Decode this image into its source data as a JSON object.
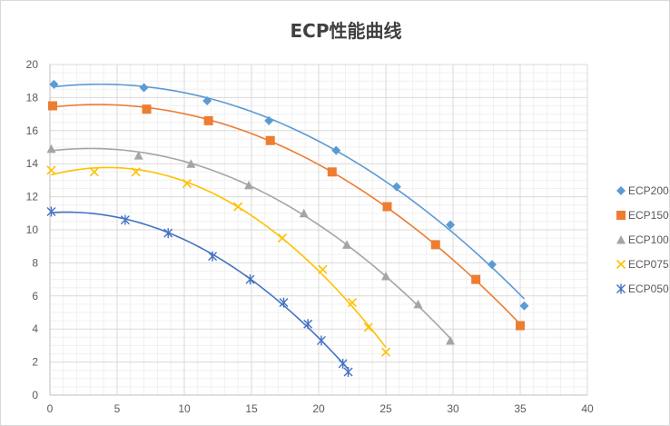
{
  "chart_data": {
    "type": "scatter",
    "title": "ECP性能曲线",
    "xlabel": "",
    "ylabel": "",
    "xlim": [
      0,
      40
    ],
    "ylim": [
      0,
      20
    ],
    "xticks": [
      0,
      5,
      10,
      15,
      20,
      25,
      30,
      35,
      40
    ],
    "yticks": [
      0,
      2,
      4,
      6,
      8,
      10,
      12,
      14,
      16,
      18,
      20
    ],
    "grid": true,
    "legend_position": "right",
    "series": [
      {
        "name": "ECP200",
        "color": "#5B9BD5",
        "marker": "diamond",
        "x": [
          0.3,
          7.0,
          11.7,
          16.3,
          21.3,
          25.8,
          29.8,
          32.9,
          35.3
        ],
        "y": [
          18.8,
          18.6,
          17.8,
          16.6,
          14.8,
          12.6,
          10.3,
          7.9,
          5.4
        ]
      },
      {
        "name": "ECP150",
        "color": "#ED7D31",
        "marker": "square",
        "x": [
          0.2,
          7.2,
          11.8,
          16.4,
          21.0,
          25.1,
          28.7,
          31.7,
          35.0
        ],
        "y": [
          17.5,
          17.3,
          16.6,
          15.4,
          13.5,
          11.4,
          9.1,
          7.0,
          4.2
        ]
      },
      {
        "name": "ECP100",
        "color": "#A5A5A5",
        "marker": "triangle",
        "x": [
          0.1,
          6.6,
          10.5,
          14.8,
          18.9,
          22.1,
          25.0,
          27.4,
          29.8
        ],
        "y": [
          14.9,
          14.5,
          14.0,
          12.7,
          11.0,
          9.1,
          7.2,
          5.5,
          3.3
        ]
      },
      {
        "name": "ECP075",
        "color": "#FFC000",
        "marker": "x",
        "x": [
          0.1,
          3.3,
          6.4,
          10.2,
          14.0,
          17.3,
          20.3,
          22.5,
          23.7,
          25.0
        ],
        "y": [
          13.6,
          13.5,
          13.5,
          12.8,
          11.4,
          9.5,
          7.6,
          5.6,
          4.1,
          2.6
        ]
      },
      {
        "name": "ECP050",
        "color": "#4472C4",
        "marker": "asterisk",
        "x": [
          0.1,
          5.6,
          8.8,
          12.1,
          14.9,
          17.4,
          19.2,
          20.2,
          21.8,
          22.2
        ],
        "y": [
          11.1,
          10.6,
          9.8,
          8.4,
          7.0,
          5.6,
          4.3,
          3.3,
          1.9,
          1.4
        ]
      }
    ]
  }
}
